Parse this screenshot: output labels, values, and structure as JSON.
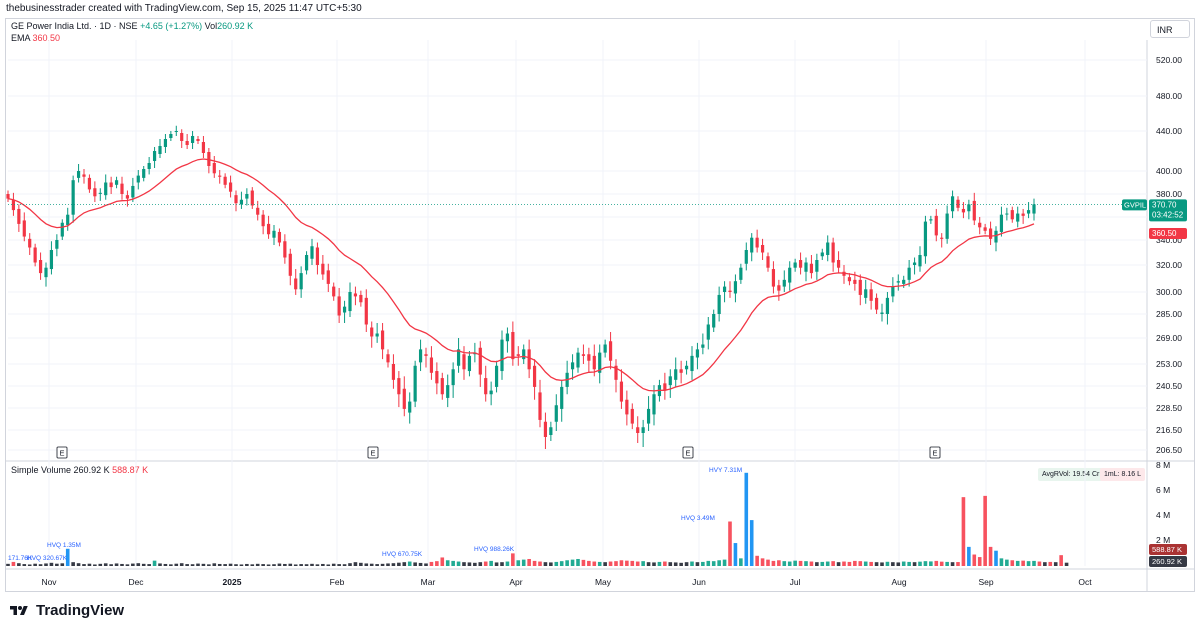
{
  "header": {
    "attribution": "thebusinesstrader created with TradingView.com, Sep 15, 2025 11:47 UTC+5:30"
  },
  "legend": {
    "symbol": "GE Power India Ltd. · 1D · NSE",
    "change": "+4.65 (+1.27%)",
    "vol_label": "Vol",
    "vol_value": "260.92 K",
    "ema_label": "EMA",
    "ema_value": "360.50",
    "volume_label": "Simple Volume",
    "volume_value": "260.92 K",
    "volume_avg": "588.87 K"
  },
  "currency": "INR",
  "colors": {
    "up": "#089981",
    "down": "#f23645",
    "ema": "#f23645",
    "vol_up": "#2196f3",
    "vol_down": "#f7525f",
    "vol_neutral": "#363a45",
    "vol_green": "#22ab94",
    "hv_label": "#2962ff"
  },
  "badges": {
    "ticker": "GVPIL",
    "price": "370.70",
    "countdown": "03:42:52",
    "ema": "360.50",
    "vol_avg": "588.87 K",
    "vol_last": "260.92 K",
    "avg_rvol": "AvgRVol: 19.54 Cr",
    "rvol_1ml": "1mL: 8.16 L"
  },
  "earnings_marker": "E",
  "footer": {
    "brand": "TradingView"
  },
  "chart_data": {
    "type": "candlestick",
    "price_axis_labels": [
      "520.00",
      "480.00",
      "440.00",
      "400.00",
      "380.00",
      "360.00",
      "340.00",
      "320.00",
      "300.00",
      "285.00",
      "269.00",
      "253.00",
      "240.50",
      "228.50",
      "216.50",
      "206.50"
    ],
    "volume_axis_labels": [
      "8 M",
      "6 M",
      "4 M",
      "2 M"
    ],
    "x_labels": [
      "Nov",
      "Dec",
      "2025",
      "Feb",
      "Mar",
      "Apr",
      "May",
      "Jun",
      "Jul",
      "Aug",
      "Sep",
      "Oct"
    ],
    "earnings_dates": [
      "2024-10-30",
      "2025-01-30",
      "2025-05-29",
      "2025-08-13"
    ],
    "hv_labels": [
      "171.76K",
      "HVQ 320.67K",
      "HVQ 1.35M",
      "HVQ 670.75K",
      "HVQ 988.26K",
      "HVQ 3.49M",
      "HVY 7.31M"
    ],
    "closes": [
      376,
      366,
      354,
      343,
      334,
      322,
      314,
      318,
      332,
      340,
      355,
      362,
      392,
      400,
      395,
      384,
      378,
      381,
      390,
      386,
      392,
      380,
      376,
      387,
      396,
      402,
      408,
      420,
      425,
      432,
      437,
      440,
      430,
      426,
      435,
      430,
      418,
      405,
      398,
      395,
      388,
      382,
      372,
      375,
      380,
      370,
      362,
      352,
      345,
      348,
      338,
      326,
      312,
      302,
      314,
      328,
      335,
      320,
      313,
      306,
      297,
      284,
      290,
      300,
      297,
      293,
      278,
      270,
      272,
      262,
      254,
      244,
      236,
      228,
      232,
      252,
      262,
      258,
      248,
      242,
      236,
      241,
      250,
      262,
      250,
      258,
      260,
      247,
      236,
      238,
      252,
      268,
      272,
      256,
      258,
      262,
      250,
      240,
      222,
      213,
      218,
      230,
      240,
      248,
      254,
      260,
      258,
      255,
      250,
      260,
      265,
      255,
      244,
      232,
      225,
      220,
      215,
      218,
      228,
      236,
      241,
      238,
      246,
      250,
      248,
      252,
      258,
      262,
      265,
      278,
      285,
      298,
      304,
      300,
      308,
      318,
      332,
      342,
      334,
      330,
      318,
      304,
      301,
      309,
      318,
      322,
      318,
      322,
      314,
      324,
      330,
      338,
      322,
      318,
      312,
      308,
      306,
      298,
      302,
      294,
      288,
      286,
      296,
      304,
      308,
      309,
      318,
      322,
      328,
      356,
      358,
      344,
      341,
      363,
      378,
      368,
      364,
      371,
      357,
      351,
      348,
      341,
      348,
      362,
      363,
      358,
      363,
      361,
      366,
      371
    ],
    "volume_millions": [
      0.17,
      0.32,
      0.22,
      0.15,
      0.12,
      0.18,
      0.14,
      0.2,
      0.25,
      0.18,
      0.21,
      1.35,
      0.3,
      0.22,
      0.15,
      0.18,
      0.12,
      0.17,
      0.21,
      0.14,
      0.2,
      0.16,
      0.13,
      0.19,
      0.22,
      0.17,
      0.15,
      0.42,
      0.2,
      0.16,
      0.13,
      0.18,
      0.22,
      0.15,
      0.14,
      0.19,
      0.17,
      0.13,
      0.21,
      0.16,
      0.15,
      0.18,
      0.14,
      0.12,
      0.16,
      0.13,
      0.17,
      0.15,
      0.12,
      0.14,
      0.19,
      0.16,
      0.18,
      0.12,
      0.15,
      0.14,
      0.17,
      0.13,
      0.16,
      0.12,
      0.18,
      0.15,
      0.14,
      0.22,
      0.3,
      0.25,
      0.2,
      0.18,
      0.15,
      0.17,
      0.2,
      0.22,
      0.26,
      0.3,
      0.35,
      0.28,
      0.24,
      0.2,
      0.32,
      0.38,
      0.67,
      0.45,
      0.4,
      0.35,
      0.3,
      0.28,
      0.25,
      0.3,
      0.35,
      0.4,
      0.28,
      0.3,
      0.35,
      0.99,
      0.45,
      0.5,
      0.55,
      0.4,
      0.35,
      0.3,
      0.28,
      0.32,
      0.38,
      0.45,
      0.5,
      0.55,
      0.48,
      0.4,
      0.35,
      0.32,
      0.3,
      0.35,
      0.38,
      0.45,
      0.42,
      0.4,
      0.35,
      0.38,
      0.3,
      0.28,
      0.32,
      0.35,
      0.3,
      0.28,
      0.25,
      0.3,
      0.35,
      0.3,
      0.32,
      0.4,
      0.38,
      0.45,
      0.5,
      3.49,
      1.8,
      0.6,
      7.31,
      3.6,
      0.8,
      0.6,
      0.5,
      0.4,
      0.45,
      0.38,
      0.35,
      0.42,
      0.4,
      0.38,
      0.35,
      0.3,
      0.32,
      0.35,
      0.38,
      0.3,
      0.35,
      0.32,
      0.4,
      0.38,
      0.35,
      0.32,
      0.3,
      0.28,
      0.33,
      0.3,
      0.28,
      0.35,
      0.32,
      0.3,
      0.34,
      0.38,
      0.36,
      0.4,
      0.34,
      0.32,
      0.3,
      0.31,
      5.4,
      1.5,
      0.9,
      0.7,
      5.5,
      1.5,
      1.2,
      0.6,
      0.5,
      0.45,
      0.4,
      0.42,
      0.38,
      0.4,
      0.35,
      0.3,
      0.32,
      0.3,
      0.85,
      0.26
    ]
  }
}
